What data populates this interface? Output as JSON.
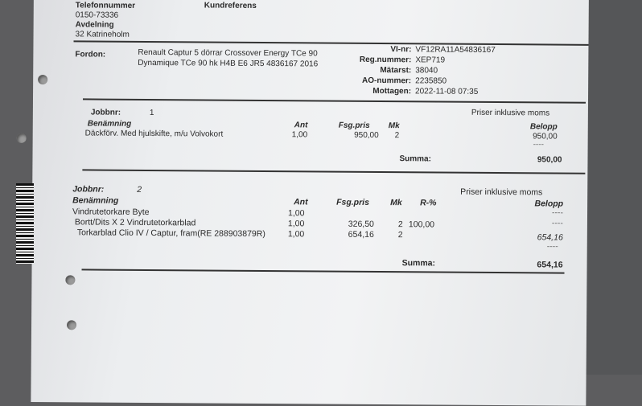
{
  "header": {
    "phone_label": "Telefonnummer",
    "phone": "0150-73336",
    "ref_label": "Kundreferens",
    "dept_label": "Avdelning",
    "dept": "32 Katrineholm"
  },
  "vehicle": {
    "label": "Fordon:",
    "line1": "Renault Captur 5 dörrar Crossover Energy TCe 90",
    "line2": "Dynamique TCe 90 hk H4B E6 JR5 4836167  2016",
    "fields": [
      {
        "label": "VI-nr:",
        "value": "VF12RA11A54836167"
      },
      {
        "label": "Reg.nummer:",
        "value": "XEP719"
      },
      {
        "label": "Mätarst:",
        "value": "38040"
      },
      {
        "label": "AO-nummer:",
        "value": "2235850"
      },
      {
        "label": "Mottagen:",
        "value": "2022-11-08 07:35"
      }
    ]
  },
  "columns": {
    "name": "Benämning",
    "qty": "Ant",
    "price": "Fsg.pris",
    "mk": "Mk",
    "discount": "R-%",
    "amount": "Belopp"
  },
  "jobs": [
    {
      "label": "Jobbnr:",
      "number": "1",
      "note": "Priser inklusive moms",
      "rows": [
        {
          "name": "Däckförv. Med hjulskifte, m/u Volvokort",
          "qty": "1,00",
          "price": "950,00",
          "mk": "2",
          "discount": "",
          "amount": "950,00"
        }
      ],
      "dash": "----",
      "sum_label": "Summa:",
      "sum": "950,00"
    },
    {
      "label": "Jobbnr:",
      "number": "2",
      "note": "Priser inklusive moms",
      "rows": [
        {
          "name": "Vindrutetorkare Byte",
          "qty": "1,00",
          "price": "",
          "mk": "",
          "discount": "",
          "amount": "----"
        },
        {
          "name": "Bortt/Dits X 2 Vindrutetorkarblad",
          "qty": "1,00",
          "price": "326,50",
          "mk": "2",
          "discount": "100,00",
          "amount": "----"
        },
        {
          "name": "Torkarblad Clio IV / Captur, fram(RE 288903879R)",
          "qty": "1,00",
          "price": "654,16",
          "mk": "2",
          "discount": "",
          "amount": "654,16"
        }
      ],
      "dash": "----",
      "sum_label": "Summa:",
      "sum": "654,16"
    }
  ]
}
